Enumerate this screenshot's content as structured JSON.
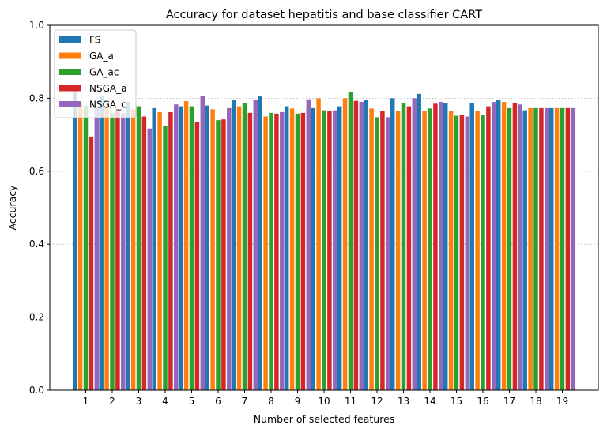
{
  "chart_data": {
    "type": "bar",
    "title": "Accuracy for dataset hepatitis and base classifier CART",
    "xlabel": "Number of selected features",
    "ylabel": "Accuracy",
    "ylim": [
      0,
      1.0
    ],
    "yticks": [
      "0.0",
      "0.2",
      "0.4",
      "0.6",
      "0.8",
      "1.0"
    ],
    "grid": "horizontal dotted",
    "legend_position": "top-left",
    "categories": [
      "1",
      "2",
      "3",
      "4",
      "5",
      "6",
      "7",
      "8",
      "9",
      "10",
      "11",
      "12",
      "13",
      "14",
      "15",
      "16",
      "17",
      "18",
      "19"
    ],
    "series": [
      {
        "name": "FS",
        "color": "#1f77b4",
        "values": [
          0.825,
          0.805,
          0.79,
          0.773,
          0.778,
          0.78,
          0.795,
          0.805,
          0.778,
          0.773,
          0.778,
          0.795,
          0.8,
          0.812,
          0.787,
          0.787,
          0.795,
          0.767,
          0.773
        ]
      },
      {
        "name": "GA_a",
        "color": "#ff7f0e",
        "values": [
          0.79,
          0.78,
          0.77,
          0.762,
          0.792,
          0.77,
          0.778,
          0.75,
          0.772,
          0.8,
          0.8,
          0.772,
          0.765,
          0.765,
          0.765,
          0.765,
          0.79,
          0.773,
          0.773
        ]
      },
      {
        "name": "GA_ac",
        "color": "#2ca02c",
        "values": [
          0.78,
          0.76,
          0.778,
          0.725,
          0.778,
          0.74,
          0.787,
          0.76,
          0.758,
          0.767,
          0.818,
          0.748,
          0.787,
          0.772,
          0.752,
          0.755,
          0.773,
          0.773,
          0.773
        ]
      },
      {
        "name": "NSGA_a",
        "color": "#d62728",
        "values": [
          0.695,
          0.765,
          0.75,
          0.762,
          0.735,
          0.742,
          0.76,
          0.758,
          0.76,
          0.765,
          0.793,
          0.765,
          0.778,
          0.785,
          0.755,
          0.778,
          0.787,
          0.773,
          0.773
        ]
      },
      {
        "name": "NSGA_c",
        "color": "#9467bd",
        "values": [
          0.775,
          0.76,
          0.717,
          0.783,
          0.807,
          0.773,
          0.795,
          0.762,
          0.797,
          0.767,
          0.79,
          0.748,
          0.8,
          0.79,
          0.75,
          0.79,
          0.783,
          0.773,
          0.773
        ]
      }
    ]
  }
}
